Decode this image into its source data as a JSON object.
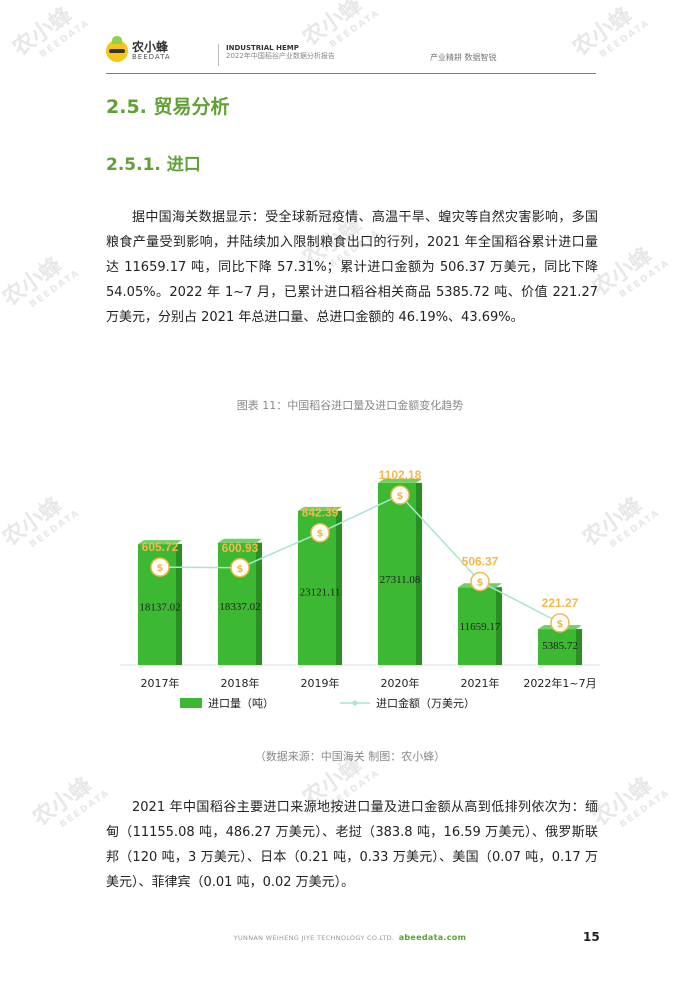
{
  "header": {
    "logo_cn": "农小蜂",
    "logo_en": "BEEDATA",
    "report_en": "INDUSTRIAL HEMP",
    "report_cn": "2022年中国稻谷产业数据分析报告",
    "slogan": "产业精耕  数据智锐"
  },
  "section": {
    "h2": "2.5. 贸易分析",
    "h3": "2.5.1. 进口"
  },
  "paragraphs": {
    "p1": "据中国海关数据显示：受全球新冠疫情、高温干旱、蝗灾等自然灾害影响，多国粮食产量受到影响，并陆续加入限制粮食出口的行列，2021 年全国稻谷累计进口量达 11659.17 吨，同比下降 57.31%；累计进口金额为 506.37 万美元，同比下降 54.05%。2022 年 1~7 月，已累计进口稻谷相关商品 5385.72 吨、价值 221.27 万美元，分别占 2021 年总进口量、总进口金额的 46.19%、43.69%。",
    "p2": "2021 年中国稻谷主要进口来源地按进口量及进口金额从高到低排列依次为：缅甸（11155.08 吨，486.27 万美元）、老挝（383.8 吨，16.59 万美元）、俄罗斯联邦（120 吨，3 万美元）、日本（0.21 吨，0.33 万美元）、美国（0.07 吨，0.17 万美元）、菲律宾（0.01 吨，0.02 万美元）。"
  },
  "figure": {
    "caption": "图表 11：中国稻谷进口量及进口金额变化趋势",
    "source": "（数据来源：中国海关    制图：农小蜂）"
  },
  "chart_data": {
    "type": "bar",
    "categories": [
      "2017年",
      "2018年",
      "2019年",
      "2020年",
      "2021年",
      "2022年1~7月"
    ],
    "series": [
      {
        "name": "进口量（吨）",
        "type": "bar",
        "values": [
          18137.02,
          18337.02,
          23121.11,
          27311.08,
          11659.17,
          5385.72
        ],
        "labels": [
          "18137.02",
          "18337.02",
          "23121.11",
          "27311.08",
          "11659.17",
          "5385.72"
        ]
      },
      {
        "name": "进口金额（万美元）",
        "type": "line",
        "values": [
          605.72,
          600.93,
          842.39,
          1102.18,
          506.37,
          221.27
        ],
        "labels": [
          "605.72",
          "600.93",
          "842.39",
          "1102.18",
          "506.37",
          "221.27"
        ]
      }
    ],
    "colors": {
      "bar": "#3cb832",
      "bar_dark": "#2a8f23",
      "line": "#a8e6cf",
      "marker": "#f5b84a",
      "line_label": "#f5b84a"
    },
    "marker_icon": "dollar-coin-icon",
    "legend_position": "bottom"
  },
  "footer": {
    "company": "YUNNAN WEIHENG JIYE TECHNOLOGY CO.LTD.",
    "site": "abeedata.com",
    "page": "15"
  },
  "watermark": {
    "cn": "农小蜂",
    "en": "BEEDATA"
  }
}
